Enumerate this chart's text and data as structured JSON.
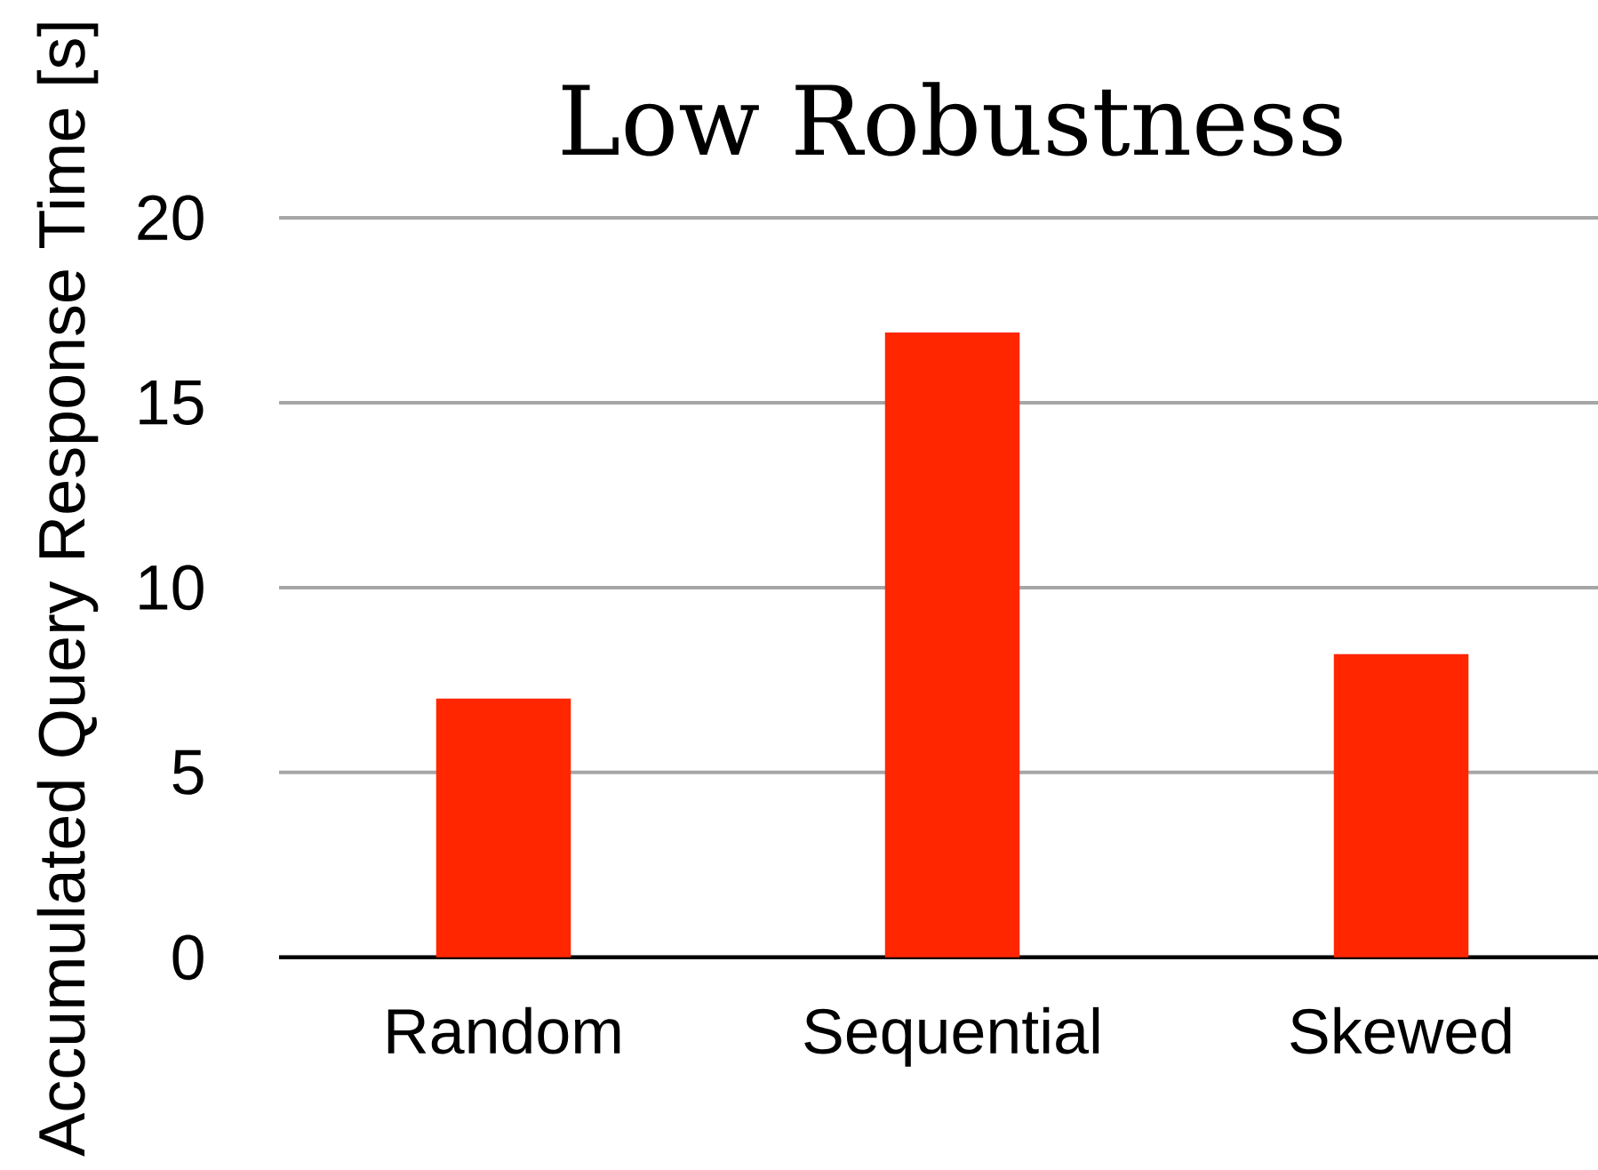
{
  "chart_data": {
    "type": "bar",
    "title": "Low Robustness",
    "ylabel": "Accumulated Query Response Time [s]",
    "categories": [
      "Random",
      "Sequential",
      "Skewed"
    ],
    "values": [
      7.0,
      16.9,
      8.2
    ],
    "color": "#ff2600",
    "ylim": [
      0,
      20
    ],
    "yticks": [
      0,
      5,
      10,
      15,
      20
    ],
    "grid": "y"
  }
}
